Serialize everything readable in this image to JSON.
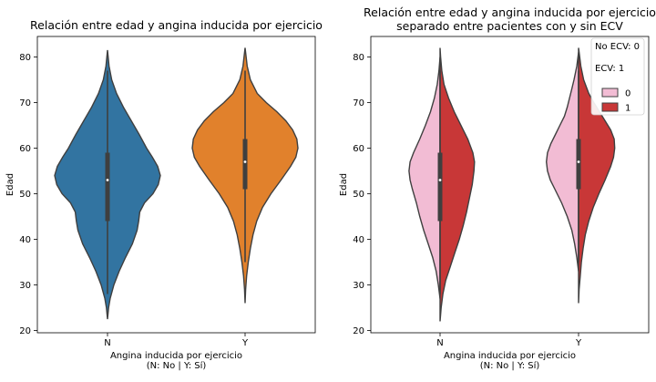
{
  "colors": {
    "N": "#3274a1",
    "Y": "#e1812c",
    "ecv0": "#f2bcd4",
    "ecv1": "#c83737",
    "outline": "#3f3f3f",
    "box": "#3f3f3f"
  },
  "chart_data": [
    {
      "type": "violin",
      "title": "Relación entre edad y angina inducida por ejercicio",
      "xlabel": "Angina inducida por ejercicio\n(N: No | Y: Sí)",
      "ylabel": "Edad",
      "categories": [
        "N",
        "Y"
      ],
      "ylim": [
        19.5,
        84.5
      ],
      "yticks": [
        20,
        30,
        40,
        50,
        60,
        70,
        80
      ],
      "grid": false,
      "violins": [
        {
          "category": "N",
          "min": 22.5,
          "max": 81.5,
          "q1": 44,
          "median": 53,
          "q3": 59,
          "whisker_low": 28,
          "whisker_high": 77,
          "density": [
            [
              22.5,
              0
            ],
            [
              25,
              0.02
            ],
            [
              27,
              0.05
            ],
            [
              30,
              0.12
            ],
            [
              33,
              0.22
            ],
            [
              36,
              0.34
            ],
            [
              39,
              0.47
            ],
            [
              42,
              0.56
            ],
            [
              44,
              0.59
            ],
            [
              46,
              0.61
            ],
            [
              48,
              0.7
            ],
            [
              50,
              0.86
            ],
            [
              52,
              0.96
            ],
            [
              54,
              1.0
            ],
            [
              56,
              0.95
            ],
            [
              58,
              0.85
            ],
            [
              60,
              0.74
            ],
            [
              63,
              0.6
            ],
            [
              66,
              0.45
            ],
            [
              69,
              0.3
            ],
            [
              72,
              0.17
            ],
            [
              75,
              0.08
            ],
            [
              78,
              0.03
            ],
            [
              81.5,
              0
            ]
          ]
        },
        {
          "category": "Y",
          "min": 26,
          "max": 82,
          "q1": 51,
          "median": 57,
          "q3": 62,
          "whisker_low": 35,
          "whisker_high": 77,
          "density": [
            [
              26,
              0
            ],
            [
              29,
              0.01
            ],
            [
              32,
              0.03
            ],
            [
              35,
              0.06
            ],
            [
              38,
              0.1
            ],
            [
              41,
              0.15
            ],
            [
              44,
              0.22
            ],
            [
              47,
              0.33
            ],
            [
              50,
              0.49
            ],
            [
              53,
              0.68
            ],
            [
              56,
              0.86
            ],
            [
              58,
              0.96
            ],
            [
              60,
              1.0
            ],
            [
              62,
              0.98
            ],
            [
              64,
              0.9
            ],
            [
              66,
              0.77
            ],
            [
              68,
              0.6
            ],
            [
              70,
              0.4
            ],
            [
              72,
              0.23
            ],
            [
              75,
              0.1
            ],
            [
              78,
              0.04
            ],
            [
              82,
              0
            ]
          ]
        }
      ]
    },
    {
      "type": "split-violin",
      "title": "Relación entre edad y angina inducida por ejercicio\nseparado entre pacientes con y sin ECV",
      "xlabel": "Angina inducida por ejercicio\n(N: No | Y: Sí)",
      "ylabel": "Edad",
      "categories": [
        "N",
        "Y"
      ],
      "ylim": [
        19.5,
        84.5
      ],
      "yticks": [
        20,
        30,
        40,
        50,
        60,
        70,
        80
      ],
      "grid": false,
      "legend": {
        "position": "top-right",
        "notes": [
          "No ECV: 0",
          "ECV: 1"
        ],
        "entries": [
          "0",
          "1"
        ]
      },
      "violins": [
        {
          "category": "N",
          "q1": 44,
          "median": 53,
          "q3": 59,
          "whisker_low": 28,
          "whisker_high": 77,
          "left": [
            [
              27,
              0
            ],
            [
              30,
              0.03
            ],
            [
              33,
              0.07
            ],
            [
              36,
              0.13
            ],
            [
              39,
              0.21
            ],
            [
              42,
              0.29
            ],
            [
              45,
              0.36
            ],
            [
              48,
              0.42
            ],
            [
              51,
              0.49
            ],
            [
              53,
              0.53
            ],
            [
              55,
              0.55
            ],
            [
              57,
              0.53
            ],
            [
              59,
              0.47
            ],
            [
              62,
              0.36
            ],
            [
              65,
              0.26
            ],
            [
              68,
              0.17
            ],
            [
              71,
              0.1
            ],
            [
              74,
              0.05
            ],
            [
              77,
              0.02
            ],
            [
              80,
              0
            ]
          ],
          "right": [
            [
              22,
              0
            ],
            [
              25,
              0.02
            ],
            [
              28,
              0.05
            ],
            [
              31,
              0.1
            ],
            [
              34,
              0.18
            ],
            [
              37,
              0.26
            ],
            [
              40,
              0.34
            ],
            [
              43,
              0.41
            ],
            [
              46,
              0.47
            ],
            [
              49,
              0.52
            ],
            [
              52,
              0.57
            ],
            [
              55,
              0.6
            ],
            [
              57,
              0.61
            ],
            [
              59,
              0.58
            ],
            [
              62,
              0.49
            ],
            [
              65,
              0.37
            ],
            [
              68,
              0.25
            ],
            [
              71,
              0.15
            ],
            [
              74,
              0.07
            ],
            [
              77,
              0.03
            ],
            [
              80,
              0.01
            ],
            [
              82,
              0
            ]
          ]
        },
        {
          "category": "Y",
          "q1": 51,
          "median": 57,
          "q3": 62,
          "whisker_low": 35,
          "whisker_high": 77,
          "left": [
            [
              33,
              0
            ],
            [
              36,
              0.03
            ],
            [
              39,
              0.07
            ],
            [
              42,
              0.12
            ],
            [
              45,
              0.2
            ],
            [
              48,
              0.3
            ],
            [
              51,
              0.42
            ],
            [
              53,
              0.5
            ],
            [
              55,
              0.55
            ],
            [
              57,
              0.57
            ],
            [
              59,
              0.55
            ],
            [
              61,
              0.49
            ],
            [
              63,
              0.41
            ],
            [
              65,
              0.33
            ],
            [
              67,
              0.25
            ],
            [
              69,
              0.2
            ],
            [
              71,
              0.16
            ],
            [
              73,
              0.12
            ],
            [
              75,
              0.08
            ],
            [
              78,
              0.03
            ],
            [
              81,
              0
            ]
          ],
          "right": [
            [
              26,
              0
            ],
            [
              29,
              0.01
            ],
            [
              32,
              0.03
            ],
            [
              35,
              0.05
            ],
            [
              38,
              0.08
            ],
            [
              41,
              0.12
            ],
            [
              44,
              0.18
            ],
            [
              47,
              0.26
            ],
            [
              50,
              0.36
            ],
            [
              53,
              0.47
            ],
            [
              56,
              0.57
            ],
            [
              58,
              0.62
            ],
            [
              60,
              0.64
            ],
            [
              62,
              0.63
            ],
            [
              64,
              0.57
            ],
            [
              66,
              0.47
            ],
            [
              68,
              0.37
            ],
            [
              70,
              0.27
            ],
            [
              72,
              0.18
            ],
            [
              75,
              0.09
            ],
            [
              78,
              0.04
            ],
            [
              82,
              0
            ]
          ]
        }
      ]
    }
  ]
}
